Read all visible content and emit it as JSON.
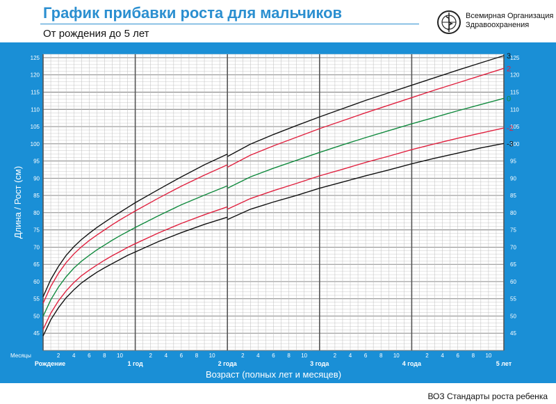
{
  "header": {
    "title": "График прибавки роста для мальчиков",
    "subtitle": "От рождения до 5 лет",
    "org_line1": "Всемирная Организация",
    "org_line2": "Здравоохранения"
  },
  "footer": {
    "text": "ВОЗ Стандарты роста ребенка"
  },
  "colors": {
    "frame": "#1a8fd6",
    "plot_bg": "#ffffff",
    "sd3": "#111111",
    "sd2": "#e0213f",
    "median": "#118a3e",
    "title": "#2b8fd0"
  },
  "chart_data": {
    "type": "line",
    "title": "График прибавки роста для мальчиков",
    "subtitle": "От рождения до 5 лет",
    "xlabel": "Возраст (полных лет и месяцев)",
    "ylabel": "Длина / Рост (см)",
    "x_unit_label": "Месяцы",
    "xlim": [
      0,
      60
    ],
    "ylim": [
      40,
      126
    ],
    "y_ticks": [
      45,
      50,
      55,
      60,
      65,
      70,
      75,
      80,
      85,
      90,
      95,
      100,
      105,
      110,
      115,
      120,
      125
    ],
    "month_tick_labels": [
      "2",
      "4",
      "6",
      "8",
      "10"
    ],
    "year_labels": [
      "Рождение",
      "1 год",
      "2 года",
      "3 года",
      "4 года",
      "5 лет"
    ],
    "grid": true,
    "x": [
      0,
      1,
      2,
      3,
      4,
      5,
      6,
      7,
      8,
      9,
      10,
      11,
      12,
      15,
      18,
      21,
      24,
      27,
      30,
      33,
      36,
      39,
      42,
      45,
      48,
      51,
      54,
      57,
      60
    ],
    "break_at": 24,
    "break_after": {
      "-3": 78.0,
      "-2": 81.0,
      "0": 87.1,
      "2": 93.2,
      "3": 96.3
    },
    "series": [
      {
        "name": "3",
        "color": "#111111",
        "values": [
          55.6,
          60.6,
          64.4,
          67.6,
          70.1,
          72.2,
          74.0,
          75.7,
          77.2,
          78.7,
          80.1,
          81.5,
          82.9,
          86.7,
          90.4,
          93.9,
          97.0,
          99.9,
          102.7,
          105.3,
          107.8,
          110.2,
          112.6,
          114.8,
          117.0,
          119.2,
          121.4,
          123.5,
          125.6
        ]
      },
      {
        "name": "2",
        "color": "#e0213f",
        "values": [
          53.7,
          58.6,
          62.4,
          65.5,
          68.0,
          70.1,
          71.9,
          73.5,
          75.0,
          76.5,
          77.9,
          79.2,
          80.5,
          84.2,
          87.7,
          90.9,
          93.9,
          96.7,
          99.4,
          101.9,
          104.4,
          106.7,
          109.0,
          111.2,
          113.4,
          115.6,
          117.7,
          119.8,
          121.9
        ]
      },
      {
        "name": "0",
        "color": "#118a3e",
        "values": [
          49.9,
          54.7,
          58.4,
          61.4,
          63.9,
          65.9,
          67.6,
          69.2,
          70.6,
          72.0,
          73.3,
          74.5,
          75.7,
          79.1,
          82.3,
          85.1,
          87.8,
          90.4,
          92.9,
          95.2,
          97.5,
          99.7,
          101.8,
          103.8,
          105.8,
          107.7,
          109.6,
          111.4,
          113.2
        ]
      },
      {
        "name": "-2",
        "color": "#e0213f",
        "values": [
          46.1,
          50.8,
          54.4,
          57.3,
          59.7,
          61.7,
          63.3,
          64.8,
          66.2,
          67.5,
          68.7,
          69.9,
          71.0,
          74.1,
          76.9,
          79.4,
          81.7,
          84.1,
          86.4,
          88.5,
          90.7,
          92.6,
          94.6,
          96.4,
          98.3,
          100.0,
          101.6,
          103.1,
          104.6
        ]
      },
      {
        "name": "-3",
        "color": "#111111",
        "values": [
          44.2,
          48.9,
          52.4,
          55.3,
          57.6,
          59.6,
          61.2,
          62.7,
          64.0,
          65.2,
          66.4,
          67.6,
          68.6,
          71.6,
          74.2,
          76.6,
          78.7,
          81.0,
          83.1,
          85.0,
          87.1,
          88.9,
          90.7,
          92.4,
          94.2,
          95.8,
          97.3,
          98.8,
          100.1
        ]
      }
    ]
  }
}
